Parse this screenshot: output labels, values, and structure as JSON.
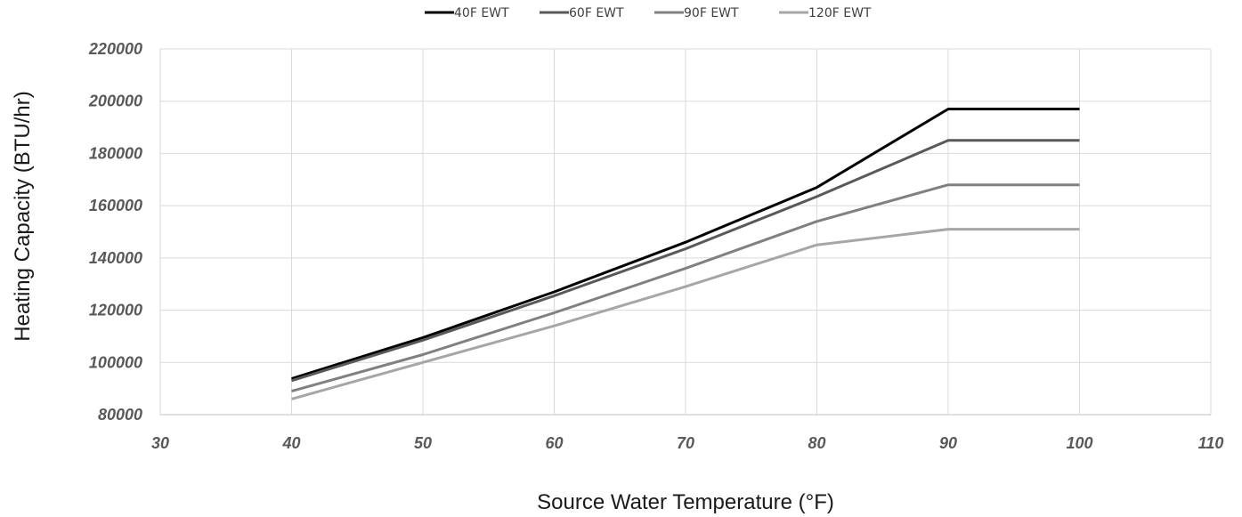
{
  "chart_data": {
    "type": "line",
    "title": "",
    "xlabel": "Source Water Temperature (°F)",
    "ylabel": "Heating Capacity (BTU/hr)",
    "xlim": [
      30,
      110
    ],
    "ylim": [
      80000,
      220000
    ],
    "x_ticks": [
      "30",
      "40",
      "50",
      "60",
      "70",
      "80",
      "90",
      "100",
      "110"
    ],
    "y_ticks": [
      "80000",
      "100000",
      "120000",
      "140000",
      "160000",
      "180000",
      "200000",
      "220000"
    ],
    "grid": true,
    "legend_position": "top",
    "x": [
      40,
      50,
      60,
      70,
      80,
      90,
      100
    ],
    "series": [
      {
        "name": "40F EWT",
        "color": "#000000",
        "values": [
          93800,
          109500,
          127000,
          146000,
          167000,
          197000,
          197000
        ]
      },
      {
        "name": "60F EWT",
        "color": "#595959",
        "values": [
          93000,
          108500,
          125500,
          143500,
          163500,
          185000,
          185000
        ]
      },
      {
        "name": "90F EWT",
        "color": "#808080",
        "values": [
          89000,
          103000,
          119000,
          136000,
          154000,
          168000,
          168000
        ]
      },
      {
        "name": "120F EWT",
        "color": "#a6a6a6",
        "values": [
          86000,
          100000,
          114000,
          129000,
          145000,
          151000,
          151000
        ]
      }
    ]
  }
}
